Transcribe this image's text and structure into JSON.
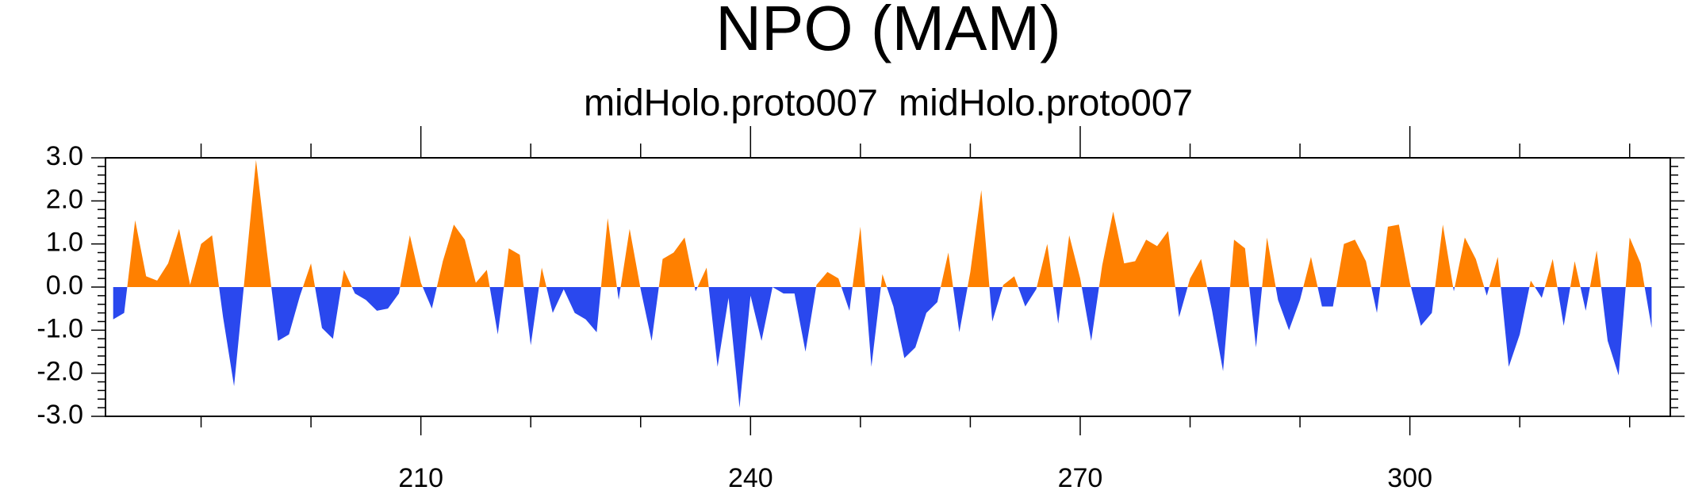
{
  "chart_data": {
    "type": "area_anomaly",
    "title": "NPO (MAM)",
    "subtitle": "midHolo.proto007  midHolo.proto007",
    "x": [
      182,
      183,
      184,
      185,
      186,
      187,
      188,
      189,
      190,
      191,
      192,
      193,
      194,
      195,
      196,
      197,
      198,
      199,
      200,
      201,
      202,
      203,
      204,
      205,
      206,
      207,
      208,
      209,
      210,
      211,
      212,
      213,
      214,
      215,
      216,
      217,
      218,
      219,
      220,
      221,
      222,
      223,
      224,
      225,
      226,
      227,
      228,
      229,
      230,
      231,
      232,
      233,
      234,
      235,
      236,
      237,
      238,
      239,
      240,
      241,
      242,
      243,
      244,
      245,
      246,
      247,
      248,
      249,
      250,
      251,
      252,
      253,
      254,
      255,
      256,
      257,
      258,
      259,
      260,
      261,
      262,
      263,
      264,
      265,
      266,
      267,
      268,
      269,
      270,
      271,
      272,
      273,
      274,
      275,
      276,
      277,
      278,
      279,
      280,
      281,
      282,
      283,
      284,
      285,
      286,
      287,
      288,
      289,
      290,
      291,
      292,
      293,
      294,
      295,
      296,
      297,
      298,
      299,
      300,
      301,
      302,
      303,
      304,
      305,
      306,
      307,
      308,
      309,
      310,
      311,
      312,
      313,
      314,
      315,
      316,
      317,
      318,
      319,
      320,
      321,
      322
    ],
    "values": [
      -0.75,
      -0.6,
      1.55,
      0.25,
      0.15,
      0.55,
      1.35,
      0.05,
      1.0,
      1.2,
      -0.7,
      -2.3,
      0.3,
      2.95,
      0.8,
      -1.25,
      -1.1,
      -0.2,
      0.55,
      -0.95,
      -1.2,
      0.4,
      -0.15,
      -0.3,
      -0.55,
      -0.5,
      -0.15,
      1.2,
      0.1,
      -0.5,
      0.6,
      1.45,
      1.1,
      0.1,
      0.4,
      -1.1,
      0.9,
      0.75,
      -1.35,
      0.45,
      -0.6,
      -0.05,
      -0.6,
      -0.75,
      -1.05,
      1.6,
      -0.3,
      1.35,
      -0.05,
      -1.25,
      0.65,
      0.8,
      1.15,
      -0.1,
      0.45,
      -1.85,
      -0.25,
      -2.8,
      -0.2,
      -1.25,
      0.0,
      -0.15,
      -0.15,
      -1.5,
      0.05,
      0.35,
      0.2,
      -0.55,
      1.4,
      -1.85,
      0.3,
      -0.45,
      -1.65,
      -1.4,
      -0.6,
      -0.35,
      0.8,
      -1.05,
      0.35,
      2.25,
      -0.8,
      0.05,
      0.25,
      -0.45,
      -0.05,
      1.0,
      -0.85,
      1.2,
      0.2,
      -1.25,
      0.5,
      1.75,
      0.55,
      0.6,
      1.1,
      0.95,
      1.3,
      -0.7,
      0.2,
      0.65,
      -0.55,
      -1.95,
      1.1,
      0.9,
      -1.4,
      1.15,
      -0.3,
      -1.0,
      -0.3,
      0.7,
      -0.45,
      -0.45,
      1.0,
      1.1,
      0.6,
      -0.6,
      1.4,
      1.45,
      0.1,
      -0.9,
      -0.6,
      1.45,
      -0.1,
      1.15,
      0.65,
      -0.2,
      0.7,
      -1.85,
      -1.1,
      0.15,
      -0.25,
      0.65,
      -0.9,
      0.6,
      -0.55,
      0.85,
      -1.25,
      -2.05,
      1.15,
      0.55,
      -0.95
    ],
    "above_color": "#ff8000",
    "below_color": "#2a48ee",
    "xlim": [
      181.3,
      323.7
    ],
    "xticks": [
      210,
      240,
      270,
      300
    ],
    "xminorticks": [
      190,
      200,
      220,
      230,
      250,
      260,
      280,
      290,
      310,
      320
    ],
    "ylim": [
      -3,
      3
    ],
    "yticks": [
      {
        "value": -3,
        "label": "-3.0"
      },
      {
        "value": -2,
        "label": "-2.0"
      },
      {
        "value": -1,
        "label": "-1.0"
      },
      {
        "value": 0,
        "label": "0.0"
      },
      {
        "value": 1,
        "label": "1.0"
      },
      {
        "value": 2,
        "label": "2.0"
      },
      {
        "value": 3,
        "label": "3.0"
      }
    ],
    "yminorticks": [
      -2.8,
      -2.6,
      -2.4,
      -2.2,
      -1.8,
      -1.6,
      -1.4,
      -1.2,
      -0.8,
      -0.6,
      -0.4,
      -0.2,
      0.2,
      0.4,
      0.6,
      0.8,
      1.2,
      1.4,
      1.6,
      1.8,
      2.2,
      2.4,
      2.6,
      2.8
    ]
  }
}
